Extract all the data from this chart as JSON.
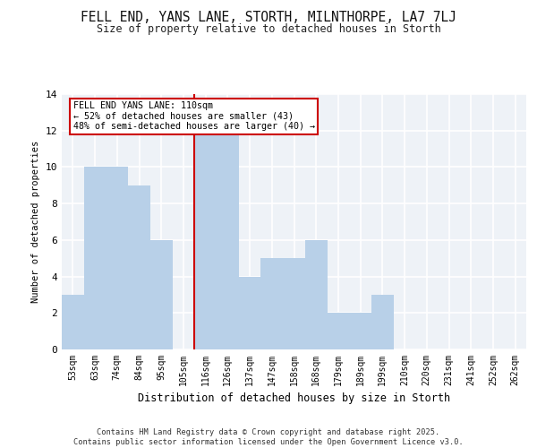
{
  "title1": "FELL END, YANS LANE, STORTH, MILNTHORPE, LA7 7LJ",
  "title2": "Size of property relative to detached houses in Storth",
  "xlabel": "Distribution of detached houses by size in Storth",
  "ylabel": "Number of detached properties",
  "categories": [
    "53sqm",
    "63sqm",
    "74sqm",
    "84sqm",
    "95sqm",
    "105sqm",
    "116sqm",
    "126sqm",
    "137sqm",
    "147sqm",
    "158sqm",
    "168sqm",
    "179sqm",
    "189sqm",
    "199sqm",
    "210sqm",
    "220sqm",
    "231sqm",
    "241sqm",
    "252sqm",
    "262sqm"
  ],
  "values": [
    3,
    10,
    10,
    9,
    6,
    0,
    12,
    12,
    4,
    5,
    5,
    6,
    2,
    2,
    3,
    0,
    0,
    0,
    0,
    0,
    0
  ],
  "bar_color": "#b8d0e8",
  "highlight_color": "#cc0000",
  "annotation_text": "FELL END YANS LANE: 110sqm\n← 52% of detached houses are smaller (43)\n48% of semi-detached houses are larger (40) →",
  "annotation_box_color": "#ffffff",
  "annotation_box_edge_color": "#cc0000",
  "footer": "Contains HM Land Registry data © Crown copyright and database right 2025.\nContains public sector information licensed under the Open Government Licence v3.0.",
  "ylim": [
    0,
    14
  ],
  "yticks": [
    0,
    2,
    4,
    6,
    8,
    10,
    12,
    14
  ],
  "bg_color": "#eef2f7",
  "grid_color": "#ffffff"
}
